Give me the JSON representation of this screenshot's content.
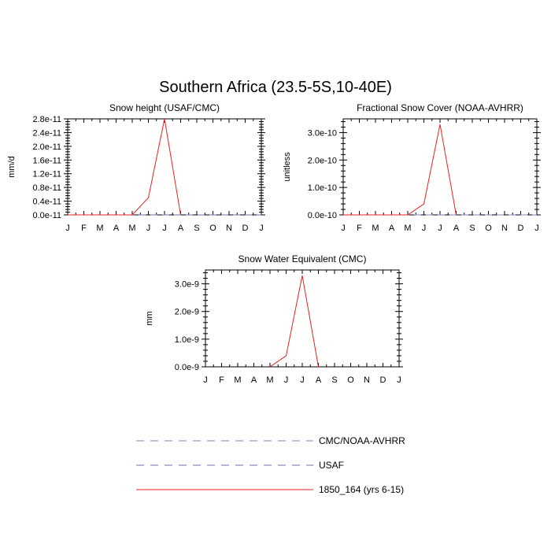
{
  "figure_title": "Southern Africa (23.5-5S,10-40E)",
  "chart_data": [
    {
      "type": "line",
      "title": "Snow height (USAF/CMC)",
      "ylabel": "mm/d",
      "xlabel": "",
      "categories": [
        "J",
        "F",
        "M",
        "A",
        "M",
        "J",
        "J",
        "A",
        "S",
        "O",
        "N",
        "D",
        "J"
      ],
      "ylim": [
        0,
        2.8e-11
      ],
      "yticks": [
        0,
        4e-12,
        8e-12,
        1.2e-11,
        1.6e-11,
        2e-11,
        2.4e-11,
        2.8e-11
      ],
      "ytick_labels": [
        "0.0e-11",
        "0.4e-11",
        "0.8e-11",
        "1.2e-11",
        "1.6e-11",
        "2.0e-11",
        "2.4e-11",
        "2.8e-11"
      ],
      "grid": false,
      "series": [
        {
          "name": "CMC/NOAA-AVHRR",
          "color": "#7f7fbf",
          "style": "dashed",
          "values": [
            0,
            0,
            0,
            0,
            0,
            0,
            0,
            0,
            0,
            0,
            0,
            0,
            0
          ]
        },
        {
          "name": "USAF",
          "color": "#6f6faf",
          "style": "dashed",
          "values": [
            0,
            0,
            0,
            0,
            0,
            0,
            0,
            0,
            0,
            0,
            0,
            0,
            0
          ]
        },
        {
          "name": "1850_164 (yrs 6-15)",
          "color": "#e8201f",
          "style": "solid",
          "values": [
            0,
            0,
            0,
            0,
            0,
            5e-12,
            2.8e-11,
            0,
            null,
            null,
            null,
            null,
            null
          ]
        }
      ]
    },
    {
      "type": "line",
      "title": "Fractional Snow Cover (NOAA-AVHRR)",
      "ylabel": "unitless",
      "xlabel": "",
      "categories": [
        "J",
        "F",
        "M",
        "A",
        "M",
        "J",
        "J",
        "A",
        "S",
        "O",
        "N",
        "D",
        "J"
      ],
      "ylim": [
        0,
        3.5e-10
      ],
      "yticks": [
        0,
        1e-10,
        2e-10,
        3e-10
      ],
      "ytick_labels": [
        "0.0e-10",
        "1.0e-10",
        "2.0e-10",
        "3.0e-10"
      ],
      "grid": false,
      "series": [
        {
          "name": "CMC/NOAA-AVHRR",
          "color": "#7f7fbf",
          "style": "dashed",
          "values": [
            0,
            0,
            0,
            0,
            0,
            0,
            0,
            0,
            0,
            0,
            0,
            0,
            0
          ]
        },
        {
          "name": "1850_164 (yrs 6-15)",
          "color": "#e8201f",
          "style": "solid",
          "values": [
            0,
            0,
            0,
            0,
            0,
            4e-11,
            3.3e-10,
            0,
            null,
            null,
            null,
            null,
            null
          ]
        }
      ]
    },
    {
      "type": "line",
      "title": "Snow Water Equivalent (CMC)",
      "ylabel": "mm",
      "xlabel": "",
      "categories": [
        "J",
        "F",
        "M",
        "A",
        "M",
        "J",
        "J",
        "A",
        "S",
        "O",
        "N",
        "D",
        "J"
      ],
      "ylim": [
        0,
        3.5e-09
      ],
      "yticks": [
        0,
        1e-09,
        2e-09,
        3e-09
      ],
      "ytick_labels": [
        "0.0e-9",
        "1.0e-9",
        "2.0e-9",
        "3.0e-9"
      ],
      "grid": false,
      "series": [
        {
          "name": "1850_164 (yrs 6-15)",
          "color": "#e8201f",
          "style": "solid",
          "values": [
            null,
            null,
            null,
            null,
            0,
            4e-10,
            3.3e-09,
            0,
            null,
            null,
            null,
            null,
            null
          ]
        }
      ]
    }
  ],
  "legend": [
    {
      "label": "CMC/NOAA-AVHRR",
      "color": "#7f7fbf",
      "style": "dashed"
    },
    {
      "label": "USAF",
      "color": "#6f6faf",
      "style": "dashed"
    },
    {
      "label": "1850_164 (yrs 6-15)",
      "color": "#e8201f",
      "style": "solid"
    }
  ]
}
